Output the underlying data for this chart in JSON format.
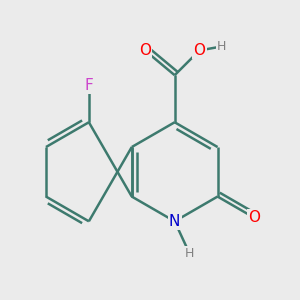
{
  "background_color": "#ebebeb",
  "bond_color": "#3d7a6e",
  "atom_colors": {
    "O": "#ff0000",
    "N": "#0000cc",
    "F": "#cc44cc",
    "H": "#808080",
    "C": "#3d7a6e"
  },
  "bond_width": 1.8,
  "font_size_atoms": 11,
  "font_size_H": 9,
  "figsize": [
    3.0,
    3.0
  ],
  "dpi": 100
}
